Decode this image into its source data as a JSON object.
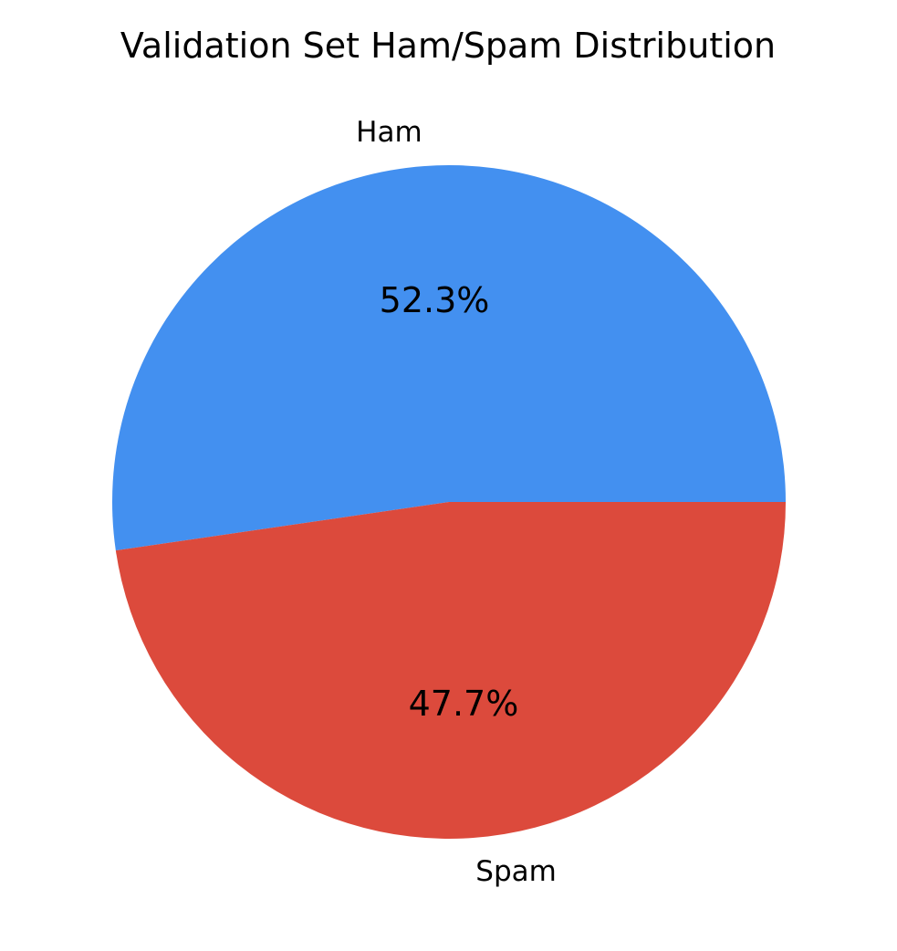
{
  "chart_data": {
    "type": "pie",
    "title": "Validation Set Ham/Spam Distribution",
    "slices": [
      {
        "label": "Ham",
        "value": 52.3,
        "value_label": "52.3%",
        "color": "#4390F0"
      },
      {
        "label": "Spam",
        "value": 47.7,
        "value_label": "47.7%",
        "color": "#DC4A3C"
      }
    ],
    "start_angle_deg": 0,
    "direction": "counterclockwise",
    "legend": "none"
  }
}
